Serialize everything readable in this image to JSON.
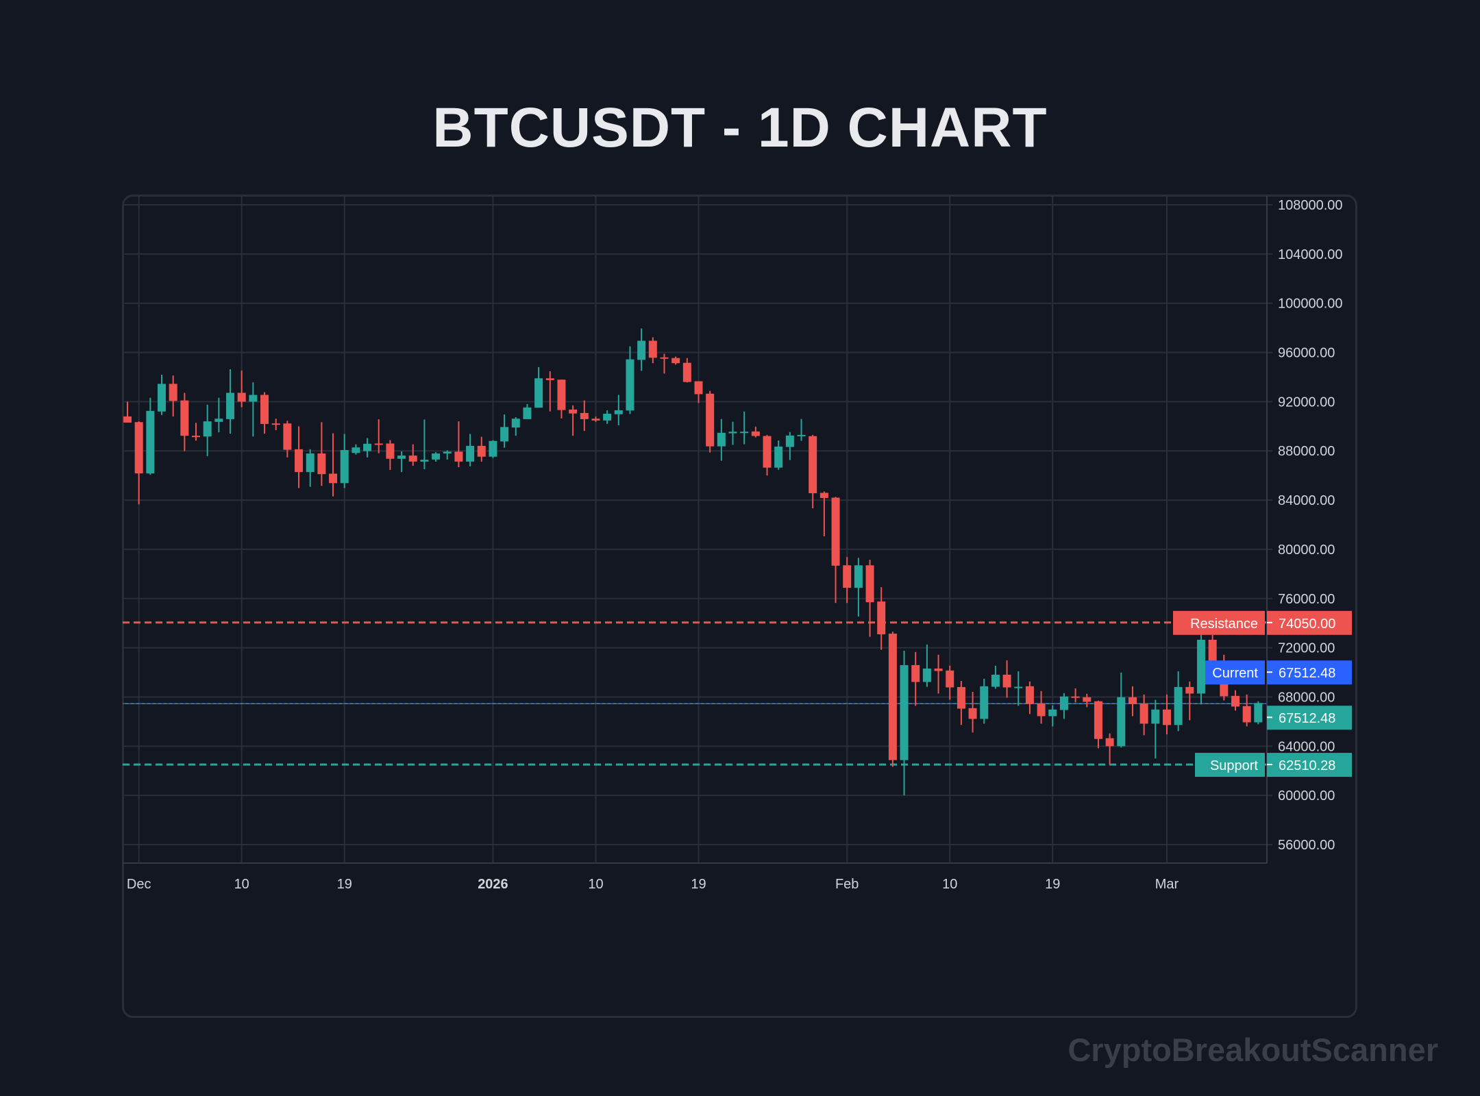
{
  "title": "BTCUSDT - 1D CHART",
  "watermark": "CryptoBreakoutScanner",
  "colors": {
    "background": "#131722",
    "up": "#26a69a",
    "down": "#ef5350",
    "grid": "#2a2e39",
    "text": "#d1d4dc",
    "current": "#2962ff"
  },
  "chart_data": {
    "type": "candlestick",
    "title": "BTCUSDT - 1D CHART",
    "ylim": [
      54500,
      108800
    ],
    "grid": true,
    "y_ticks": [
      "108000.00",
      "104000.00",
      "100000.00",
      "96000.00",
      "92000.00",
      "88000.00",
      "84000.00",
      "80000.00",
      "76000.00",
      "72000.00",
      "68000.00",
      "64000.00",
      "60000.00",
      "56000.00"
    ],
    "x_ticks": [
      {
        "date": "2025-12-01",
        "label": "Dec",
        "bold": false
      },
      {
        "date": "2025-12-10",
        "label": "10",
        "bold": false
      },
      {
        "date": "2025-12-19",
        "label": "19",
        "bold": false
      },
      {
        "date": "2026-01-01",
        "label": "2026",
        "bold": true
      },
      {
        "date": "2026-01-10",
        "label": "10",
        "bold": false
      },
      {
        "date": "2026-01-19",
        "label": "19",
        "bold": false
      },
      {
        "date": "2026-02-01",
        "label": "Feb",
        "bold": false
      },
      {
        "date": "2026-02-10",
        "label": "10",
        "bold": false
      },
      {
        "date": "2026-02-19",
        "label": "19",
        "bold": false
      },
      {
        "date": "2026-03-01",
        "label": "Mar",
        "bold": false
      }
    ],
    "levels": [
      {
        "name": "Resistance",
        "value": 74050.0,
        "label": "74050.00",
        "color": "#ef5350",
        "style": "dashed"
      },
      {
        "name": "Current",
        "value": 67512.48,
        "label": "67512.48",
        "color": "#2962ff",
        "style": "dotted"
      },
      {
        "name": "Support",
        "value": 62510.28,
        "label": "62510.28",
        "color": "#26a69a",
        "style": "dashed"
      }
    ],
    "last_price": {
      "value": 67512.48,
      "label": "67512.48"
    },
    "fields": [
      "date",
      "open",
      "high",
      "low",
      "close"
    ],
    "candles": [
      [
        "2025-11-30",
        90800,
        92000,
        90300,
        90300
      ],
      [
        "2025-12-01",
        90340,
        90400,
        83660,
        86170
      ],
      [
        "2025-12-02",
        86170,
        92320,
        86060,
        91250
      ],
      [
        "2025-12-03",
        91200,
        94190,
        90920,
        93450
      ],
      [
        "2025-12-04",
        93450,
        94130,
        90800,
        92060
      ],
      [
        "2025-12-05",
        92100,
        92720,
        87980,
        89230
      ],
      [
        "2025-12-06",
        89230,
        90280,
        88830,
        89150
      ],
      [
        "2025-12-07",
        89170,
        91750,
        87580,
        90400
      ],
      [
        "2025-12-08",
        90360,
        92320,
        89510,
        90620
      ],
      [
        "2025-12-09",
        90580,
        94640,
        89400,
        92720
      ],
      [
        "2025-12-10",
        92720,
        94530,
        91550,
        92000
      ],
      [
        "2025-12-11",
        92000,
        93570,
        89170,
        92550
      ],
      [
        "2025-12-12",
        92550,
        92770,
        89400,
        90190
      ],
      [
        "2025-12-13",
        90230,
        90620,
        89680,
        90190
      ],
      [
        "2025-12-14",
        90230,
        90450,
        87470,
        88090
      ],
      [
        "2025-12-15",
        88130,
        90000,
        84980,
        86280
      ],
      [
        "2025-12-16",
        86280,
        88130,
        85080,
        87790
      ],
      [
        "2025-12-17",
        87790,
        90340,
        85150,
        86110
      ],
      [
        "2025-12-18",
        86150,
        89430,
        84300,
        85380
      ],
      [
        "2025-12-19",
        85380,
        89380,
        84980,
        88070
      ],
      [
        "2025-12-20",
        87830,
        88530,
        87700,
        88280
      ],
      [
        "2025-12-21",
        87980,
        89040,
        87470,
        88580
      ],
      [
        "2025-12-22",
        88600,
        90570,
        87810,
        88570
      ],
      [
        "2025-12-23",
        88600,
        88880,
        86450,
        87360
      ],
      [
        "2025-12-24",
        87360,
        87960,
        86280,
        87620
      ],
      [
        "2025-12-25",
        87620,
        88530,
        86790,
        87130
      ],
      [
        "2025-12-26",
        87130,
        90550,
        86510,
        87280
      ],
      [
        "2025-12-27",
        87300,
        87900,
        87130,
        87790
      ],
      [
        "2025-12-28",
        87790,
        88050,
        87300,
        87940
      ],
      [
        "2025-12-29",
        87940,
        90400,
        86680,
        87130
      ],
      [
        "2025-12-30",
        87130,
        89380,
        86750,
        88410
      ],
      [
        "2025-12-31",
        88410,
        89150,
        87130,
        87530
      ],
      [
        "2026-01-01",
        87530,
        88870,
        87420,
        88810
      ],
      [
        "2026-01-02",
        88770,
        90960,
        88260,
        89940
      ],
      [
        "2026-01-03",
        89900,
        90740,
        89230,
        90620
      ],
      [
        "2026-01-04",
        90580,
        91810,
        90580,
        91530
      ],
      [
        "2026-01-05",
        91510,
        94810,
        91510,
        93900
      ],
      [
        "2026-01-06",
        93900,
        94470,
        91210,
        93750
      ],
      [
        "2026-01-07",
        93790,
        93790,
        90640,
        91320
      ],
      [
        "2026-01-08",
        91360,
        91700,
        89230,
        91040
      ],
      [
        "2026-01-09",
        91080,
        92100,
        89620,
        90580
      ],
      [
        "2026-01-10",
        90620,
        90790,
        90360,
        90470
      ],
      [
        "2026-01-11",
        90470,
        91300,
        90190,
        91020
      ],
      [
        "2026-01-12",
        90980,
        92550,
        90080,
        91300
      ],
      [
        "2026-01-13",
        91280,
        96500,
        91000,
        95440
      ],
      [
        "2026-01-14",
        95400,
        97950,
        94510,
        96950
      ],
      [
        "2026-01-15",
        96950,
        97230,
        95130,
        95570
      ],
      [
        "2026-01-16",
        95600,
        95890,
        94290,
        95570
      ],
      [
        "2026-01-17",
        95550,
        95670,
        95010,
        95130
      ],
      [
        "2026-01-18",
        95160,
        95550,
        93560,
        93600
      ],
      [
        "2026-01-19",
        93660,
        93660,
        91890,
        92610
      ],
      [
        "2026-01-20",
        92650,
        92880,
        87870,
        88370
      ],
      [
        "2026-01-21",
        88370,
        90590,
        87200,
        89470
      ],
      [
        "2026-01-22",
        89430,
        90370,
        88490,
        89560
      ],
      [
        "2026-01-23",
        89530,
        91200,
        88540,
        89560
      ],
      [
        "2026-01-24",
        89580,
        89970,
        89100,
        89210
      ],
      [
        "2026-01-25",
        89210,
        89300,
        86000,
        86640
      ],
      [
        "2026-01-26",
        86640,
        88850,
        86470,
        88350
      ],
      [
        "2026-01-27",
        88320,
        89530,
        87260,
        89250
      ],
      [
        "2026-01-28",
        89210,
        90590,
        88820,
        89300
      ],
      [
        "2026-01-29",
        89200,
        89300,
        83330,
        84560
      ],
      [
        "2026-01-30",
        84590,
        84700,
        81060,
        84170
      ],
      [
        "2026-01-31",
        84200,
        84260,
        75650,
        78670
      ],
      [
        "2026-02-01",
        78700,
        79370,
        75650,
        76870
      ],
      [
        "2026-02-02",
        76870,
        79310,
        74540,
        78700
      ],
      [
        "2026-02-03",
        78700,
        79150,
        72890,
        75700
      ],
      [
        "2026-02-04",
        75760,
        76930,
        71830,
        73090
      ],
      [
        "2026-02-05",
        73150,
        73310,
        62330,
        62870
      ],
      [
        "2026-02-06",
        62870,
        71760,
        60000,
        70590
      ],
      [
        "2026-02-07",
        70590,
        71650,
        67280,
        69220
      ],
      [
        "2026-02-08",
        69220,
        72260,
        68830,
        70310
      ],
      [
        "2026-02-09",
        70310,
        71430,
        68280,
        70110
      ],
      [
        "2026-02-10",
        70150,
        70540,
        67780,
        68780
      ],
      [
        "2026-02-11",
        68810,
        69310,
        65720,
        67050
      ],
      [
        "2026-02-12",
        67090,
        68420,
        65110,
        66220
      ],
      [
        "2026-02-13",
        66220,
        69480,
        65830,
        68870
      ],
      [
        "2026-02-14",
        68830,
        70540,
        68670,
        69810
      ],
      [
        "2026-02-15",
        69810,
        70980,
        67940,
        68780
      ],
      [
        "2026-02-16",
        68800,
        70090,
        67280,
        68830
      ],
      [
        "2026-02-17",
        68870,
        69260,
        66610,
        67440
      ],
      [
        "2026-02-18",
        67480,
        68480,
        65830,
        66440
      ],
      [
        "2026-02-19",
        66440,
        67310,
        65610,
        66980
      ],
      [
        "2026-02-20",
        66940,
        68310,
        66220,
        68040
      ],
      [
        "2026-02-21",
        68040,
        68700,
        67560,
        67980
      ],
      [
        "2026-02-22",
        67980,
        68260,
        67170,
        67610
      ],
      [
        "2026-02-23",
        67650,
        67700,
        63830,
        64590
      ],
      [
        "2026-02-24",
        64650,
        65040,
        62480,
        64000
      ],
      [
        "2026-02-25",
        64000,
        69980,
        63890,
        67980
      ],
      [
        "2026-02-26",
        67980,
        68870,
        66440,
        67440
      ],
      [
        "2026-02-27",
        67480,
        68200,
        64890,
        65830
      ],
      [
        "2026-02-28",
        65830,
        67760,
        63000,
        66980
      ],
      [
        "2026-03-01",
        66980,
        68200,
        64960,
        65720
      ],
      [
        "2026-03-02",
        65720,
        70090,
        65220,
        68810
      ],
      [
        "2026-03-03",
        68810,
        69260,
        66110,
        68280
      ],
      [
        "2026-03-04",
        68280,
        74040,
        67390,
        72650
      ],
      [
        "2026-03-05",
        72650,
        73040,
        70610,
        70830
      ],
      [
        "2026-03-06",
        70870,
        71430,
        67720,
        68060
      ],
      [
        "2026-03-07",
        68090,
        68540,
        66890,
        67220
      ],
      [
        "2026-03-08",
        67260,
        68200,
        65610,
        65940
      ],
      [
        "2026-03-09",
        65940,
        67650,
        65780,
        67512.48
      ]
    ]
  }
}
